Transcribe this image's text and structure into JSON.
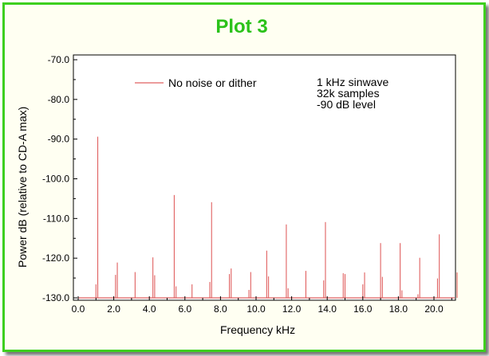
{
  "title": "Plot 3",
  "chart_data": {
    "type": "line",
    "title": "Plot 3",
    "xlabel": "Frequency  kHz",
    "ylabel": "Power   dB (relative to CD-A max)",
    "xlim": [
      0.0,
      21.6
    ],
    "ylim": [
      -130.0,
      -70.0
    ],
    "x_ticks": [
      0.0,
      2.0,
      4.0,
      6.0,
      8.0,
      10.0,
      12.0,
      14.0,
      16.0,
      18.0,
      20.0
    ],
    "x_tick_labels": [
      "0.0",
      "2.0",
      "4.0",
      "6.0",
      "8.0",
      "10.0",
      "12.0",
      "14.0",
      "16.0",
      "18.0",
      "20.0"
    ],
    "y_ticks": [
      -70.0,
      -80.0,
      -90.0,
      -100.0,
      -110.0,
      -120.0,
      -130.0
    ],
    "y_tick_labels": [
      "-70.0",
      "-80.0",
      "-90.0",
      "-100.0",
      "-110.0",
      "-120.0",
      "-130.0"
    ],
    "grid": false,
    "legend_position": "top-left",
    "series": [
      {
        "name": "No noise or dither",
        "color": "#e06060",
        "points": [
          [
            1.0,
            -126.6
          ],
          [
            1.1,
            -89.4
          ],
          [
            2.1,
            -124.2
          ],
          [
            2.2,
            -121.1
          ],
          [
            3.2,
            -123.5
          ],
          [
            4.2,
            -119.8
          ],
          [
            4.3,
            -124.3
          ],
          [
            5.4,
            -104.1
          ],
          [
            5.5,
            -127.1
          ],
          [
            6.4,
            -126.6
          ],
          [
            7.4,
            -126.0
          ],
          [
            7.5,
            -105.9
          ],
          [
            8.5,
            -124.0
          ],
          [
            8.6,
            -122.6
          ],
          [
            9.6,
            -128.0
          ],
          [
            9.7,
            -123.5
          ],
          [
            10.6,
            -118.1
          ],
          [
            10.7,
            -124.6
          ],
          [
            11.7,
            -111.5
          ],
          [
            11.8,
            -127.6
          ],
          [
            12.8,
            -123.2
          ],
          [
            13.8,
            -125.6
          ],
          [
            13.9,
            -110.9
          ],
          [
            14.9,
            -123.8
          ],
          [
            15.0,
            -124.0
          ],
          [
            16.0,
            -126.6
          ],
          [
            16.1,
            -123.6
          ],
          [
            17.0,
            -116.2
          ],
          [
            17.1,
            -124.7
          ],
          [
            18.1,
            -116.2
          ],
          [
            18.2,
            -128.1
          ],
          [
            19.1,
            -129.1
          ],
          [
            19.2,
            -119.9
          ],
          [
            20.2,
            -125.1
          ],
          [
            20.3,
            -114.0
          ],
          [
            21.3,
            -123.6
          ]
        ]
      }
    ],
    "annotations": [
      "1 kHz sinwave",
      "32k samples",
      "-90 dB level"
    ]
  }
}
